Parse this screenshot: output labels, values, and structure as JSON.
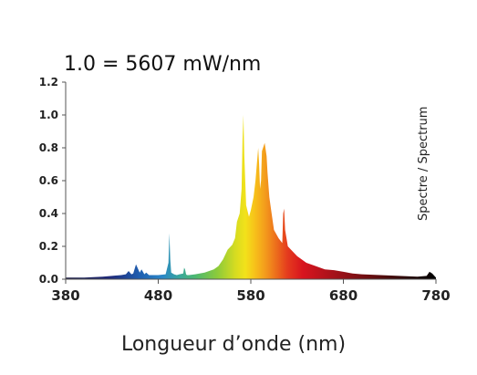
{
  "chart_data": {
    "type": "area",
    "title": "1.0 = 5607 mW/nm",
    "xlabel": "Longueur d’onde (nm)",
    "ylabel": "",
    "annotation": "Spectre / Spectrum",
    "xlim": [
      380,
      780
    ],
    "ylim": [
      0,
      1.2
    ],
    "xticks": [
      380,
      480,
      580,
      680,
      780
    ],
    "yticks": [
      "0.0",
      "0.2",
      "0.4",
      "0.6",
      "0.8",
      "1.0",
      "1.2"
    ],
    "grid": false,
    "legend": "none",
    "series": [
      {
        "x": [
          380,
          400,
          420,
          430,
          440,
          445,
          448,
          451,
          453,
          456,
          460,
          462,
          465,
          467,
          470,
          480,
          488,
          491,
          492,
          493,
          494,
          497,
          500,
          503,
          507,
          508,
          509,
          510,
          511,
          513,
          520,
          530,
          540,
          545,
          550,
          555,
          560,
          563,
          565,
          568,
          570,
          571,
          572,
          573,
          575,
          578,
          580,
          583,
          585,
          588,
          589,
          590,
          591,
          592,
          595,
          597,
          598,
          600,
          602,
          605,
          610,
          614,
          615,
          616,
          617,
          620,
          625,
          630,
          640,
          650,
          660,
          670,
          680,
          690,
          700,
          720,
          740,
          760,
          770,
          773,
          776,
          780
        ],
        "values": [
          0.01,
          0.01,
          0.015,
          0.02,
          0.025,
          0.03,
          0.05,
          0.03,
          0.035,
          0.09,
          0.04,
          0.06,
          0.03,
          0.04,
          0.025,
          0.025,
          0.03,
          0.1,
          0.28,
          0.12,
          0.04,
          0.03,
          0.025,
          0.03,
          0.035,
          0.07,
          0.06,
          0.03,
          0.025,
          0.025,
          0.03,
          0.04,
          0.06,
          0.08,
          0.12,
          0.18,
          0.21,
          0.25,
          0.35,
          0.4,
          0.55,
          0.85,
          1.0,
          0.75,
          0.45,
          0.38,
          0.42,
          0.5,
          0.6,
          0.8,
          0.7,
          0.55,
          0.6,
          0.78,
          0.83,
          0.75,
          0.65,
          0.5,
          0.42,
          0.3,
          0.25,
          0.22,
          0.4,
          0.43,
          0.3,
          0.2,
          0.17,
          0.14,
          0.1,
          0.08,
          0.06,
          0.055,
          0.045,
          0.035,
          0.03,
          0.025,
          0.02,
          0.015,
          0.02,
          0.045,
          0.035,
          0.01
        ]
      }
    ]
  }
}
